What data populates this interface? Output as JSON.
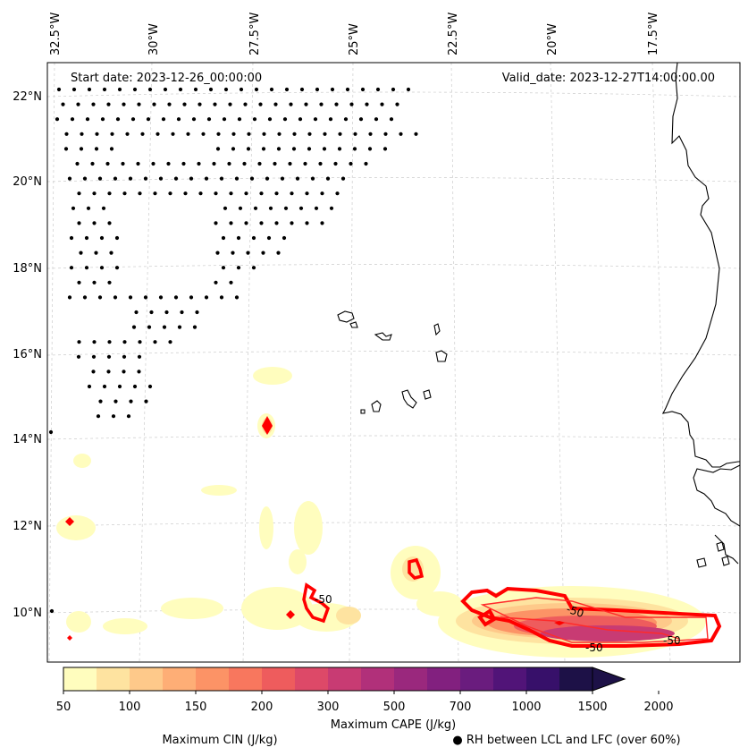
{
  "map": {
    "start_date_label": "Start date: 2023-12-26_00:00:00",
    "valid_date_label": "Valid_date: 2023-12-27T14:00:00.00",
    "lon_labels": [
      "32.5°W",
      "30°W",
      "27.5°W",
      "25°W",
      "22.5°W",
      "20°W",
      "17.5°W"
    ],
    "lat_labels": [
      "22°N",
      "20°N",
      "18°N",
      "16°N",
      "14°N",
      "12°N",
      "10°N"
    ],
    "cin_contour_labels": [
      "-50",
      "-50",
      "-50",
      "-50"
    ]
  },
  "colorbar": {
    "title": "Maximum CAPE (J/kg)",
    "levels": [
      "50",
      "100",
      "150",
      "200",
      "300",
      "500",
      "700",
      "1000",
      "1500",
      "2000"
    ],
    "colors": [
      "#fffdbe",
      "#fee3a0",
      "#fec98a",
      "#feae76",
      "#fc9366",
      "#f8775e",
      "#ee5c5d",
      "#dd4968",
      "#c83b73",
      "#b1307a",
      "#9a287d",
      "#82207f",
      "#6a1c7e",
      "#511478",
      "#37106a",
      "#1d1147"
    ]
  },
  "legend": {
    "cin_label": "Maximum CIN (J/kg)",
    "cin_color": "#ff0000",
    "rh_label": "● RH between LCL and LFC (over 60%)"
  }
}
